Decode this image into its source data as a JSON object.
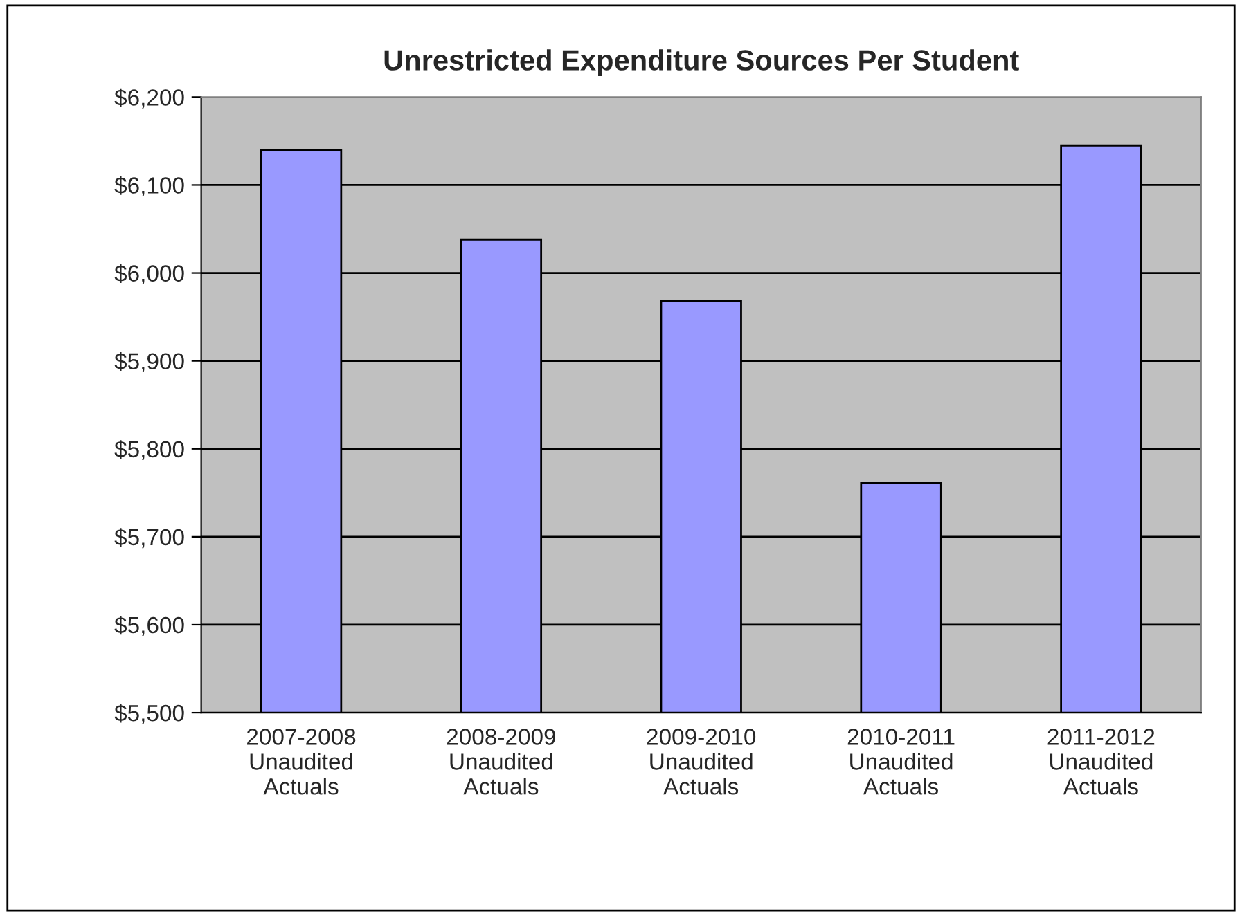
{
  "chart_data": {
    "type": "bar",
    "title": "Unrestricted Expenditure Sources Per Student",
    "categories": [
      "2007-2008\nUnaudited\nActuals",
      "2008-2009\nUnaudited\nActuals",
      "2009-2010\nUnaudited\nActuals",
      "2010-2011\nUnaudited\nActuals",
      "2011-2012\nUnaudited\nActuals"
    ],
    "values": [
      6140,
      6038,
      5968,
      5761,
      6145
    ],
    "color": "#9999ff",
    "ylim": [
      5500,
      6200
    ],
    "yticks": [
      {
        "value": 5500,
        "label": "$5,500"
      },
      {
        "value": 5600,
        "label": "$5,600"
      },
      {
        "value": 5700,
        "label": "$5,700"
      },
      {
        "value": 5800,
        "label": "$5,800"
      },
      {
        "value": 5900,
        "label": "$5,900"
      },
      {
        "value": 6000,
        "label": "$6,000"
      },
      {
        "value": 6100,
        "label": "$6,100"
      },
      {
        "value": 6200,
        "label": "$6,200"
      }
    ],
    "grid": "y",
    "legend": false
  }
}
